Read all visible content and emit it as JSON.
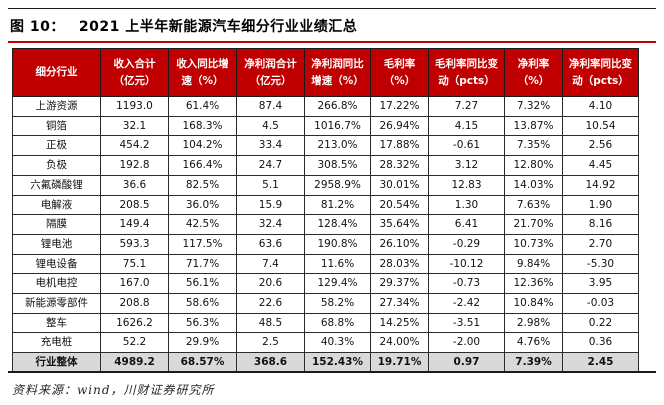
{
  "figure": {
    "label": "图 10：",
    "caption": "2021 上半年新能源汽车细分行业业绩汇总"
  },
  "table": {
    "columns": [
      {
        "label": "细分行业"
      },
      {
        "label": "收入合计（亿元）"
      },
      {
        "label": "收入同比增速（%）"
      },
      {
        "label": "净利润合计（亿元）"
      },
      {
        "label": "净利润同比增速（%）"
      },
      {
        "label": "毛利率（%）"
      },
      {
        "label": "毛利率同比变动（pcts）"
      },
      {
        "label": "净利率（%）"
      },
      {
        "label": "净利率同比变动（pcts）"
      }
    ],
    "rows": [
      [
        "上游资源",
        "1193.0",
        "61.4%",
        "87.4",
        "266.8%",
        "17.22%",
        "7.27",
        "7.32%",
        "4.10"
      ],
      [
        "铜箔",
        "32.1",
        "168.3%",
        "4.5",
        "1016.7%",
        "26.94%",
        "4.15",
        "13.87%",
        "10.54"
      ],
      [
        "正极",
        "454.2",
        "104.2%",
        "33.4",
        "213.0%",
        "17.88%",
        "-0.61",
        "7.35%",
        "2.56"
      ],
      [
        "负极",
        "192.8",
        "166.4%",
        "24.7",
        "308.5%",
        "28.32%",
        "3.12",
        "12.80%",
        "4.45"
      ],
      [
        "六氟磷酸锂",
        "36.6",
        "82.5%",
        "5.1",
        "2958.9%",
        "30.01%",
        "12.83",
        "14.03%",
        "14.92"
      ],
      [
        "电解液",
        "208.5",
        "36.0%",
        "15.9",
        "81.2%",
        "20.54%",
        "1.30",
        "7.63%",
        "1.90"
      ],
      [
        "隔膜",
        "149.4",
        "42.5%",
        "32.4",
        "128.4%",
        "35.64%",
        "6.41",
        "21.70%",
        "8.16"
      ],
      [
        "锂电池",
        "593.3",
        "117.5%",
        "63.6",
        "190.8%",
        "26.10%",
        "-0.29",
        "10.73%",
        "2.70"
      ],
      [
        "锂电设备",
        "75.1",
        "71.7%",
        "7.4",
        "11.6%",
        "28.03%",
        "-10.12",
        "9.84%",
        "-5.30"
      ],
      [
        "电机电控",
        "167.0",
        "56.1%",
        "20.6",
        "129.4%",
        "29.37%",
        "-0.73",
        "12.36%",
        "3.95"
      ],
      [
        "新能源零部件",
        "208.8",
        "58.6%",
        "22.6",
        "58.2%",
        "27.34%",
        "-2.42",
        "10.84%",
        "-0.03"
      ],
      [
        "整车",
        "1626.2",
        "56.3%",
        "48.5",
        "68.8%",
        "14.25%",
        "-3.51",
        "2.98%",
        "0.22"
      ],
      [
        "充电桩",
        "52.2",
        "29.9%",
        "2.5",
        "40.3%",
        "24.00%",
        "-2.00",
        "4.76%",
        "0.36"
      ]
    ],
    "total_row": [
      "行业整体",
      "4989.2",
      "68.57%",
      "368.6",
      "152.43%",
      "19.71%",
      "0.97",
      "7.39%",
      "2.45"
    ]
  },
  "footer": {
    "source": "资料来源：wind，川财证券研究所"
  },
  "colors": {
    "accent_red": "#C00000",
    "total_row_bg": "#D9D9D9"
  }
}
